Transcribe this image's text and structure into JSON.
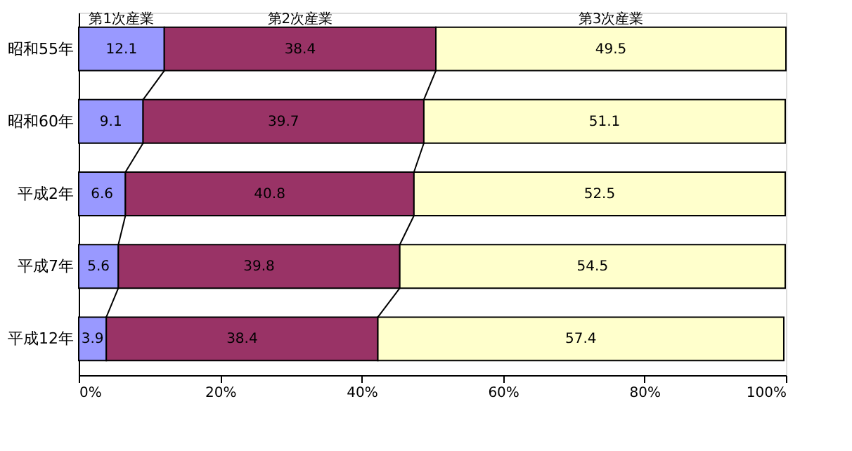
{
  "chart_data": {
    "type": "bar",
    "orientation": "horizontal",
    "stacked": true,
    "data_labels": true,
    "grid": false,
    "categories": [
      "昭和55年",
      "昭和60年",
      "平成2年",
      "平成7年",
      "平成12年"
    ],
    "series": [
      {
        "name": "第1次産業",
        "color": "#9999ff",
        "values": [
          12.1,
          9.1,
          6.6,
          5.6,
          3.9
        ]
      },
      {
        "name": "第2次産業",
        "color": "#993366",
        "values": [
          38.4,
          39.7,
          40.8,
          39.8,
          38.4
        ]
      },
      {
        "name": "第3次産業",
        "color": "#ffffcc",
        "values": [
          49.5,
          51.1,
          52.5,
          54.5,
          57.4
        ]
      }
    ],
    "xlim": [
      0,
      100
    ],
    "xticks": [
      {
        "value": 0,
        "label": "0%"
      },
      {
        "value": 20,
        "label": "20%"
      },
      {
        "value": 40,
        "label": "40%"
      },
      {
        "value": 60,
        "label": "60%"
      },
      {
        "value": 80,
        "label": "80%"
      },
      {
        "value": 100,
        "label": "100%"
      }
    ]
  }
}
